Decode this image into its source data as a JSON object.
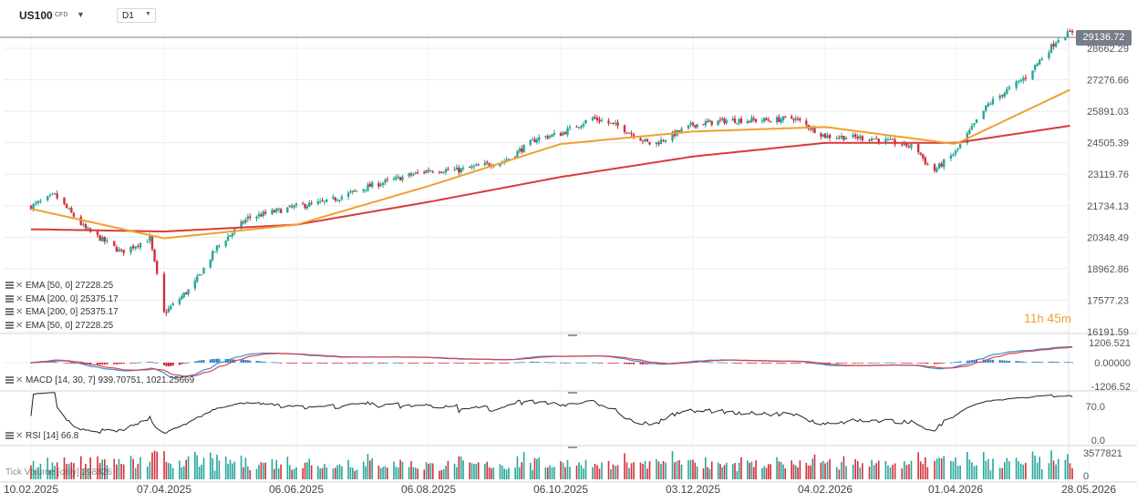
{
  "toolbar": {
    "symbol": "US100",
    "instrument_type": "CFD",
    "timeframe": "D1"
  },
  "price_panel": {
    "last_price_tag": "29136.72",
    "axis_ticks": [
      "28662.29",
      "27276.66",
      "25891.03",
      "24505.39",
      "23119.76",
      "21734.13",
      "20348.49",
      "18962.86",
      "17577.23",
      "16191.59"
    ],
    "countdown": {
      "hours": "11",
      "h_unit": "h",
      "minutes": "45",
      "m_unit": "m"
    },
    "legend": [
      {
        "label": "EMA [50, 0] 27228.25"
      },
      {
        "label": "EMA [200, 0] 25375.17"
      },
      {
        "label": "EMA [200, 0] 25375.17"
      },
      {
        "label": "EMA [50, 0] 27228.25"
      }
    ]
  },
  "macd_panel": {
    "label": "MACD [14, 30, 7] 939.70751, 1021.25669",
    "axis_ticks": [
      "1206.521",
      "0.00000",
      "-1206.52"
    ]
  },
  "rsi_panel": {
    "label": "RSI [14] 66.8",
    "axis_ticks": [
      "70.0",
      "0.0"
    ]
  },
  "volume_panel": {
    "label": "Tick Volume [only] 298826",
    "axis_ticks": [
      "3577821",
      "0"
    ]
  },
  "x_axis": [
    "10.02.2025",
    "07.04.2025",
    "06.06.2025",
    "06.08.2025",
    "06.10.2025",
    "03.12.2025",
    "04.02.2026",
    "01.04.2026",
    "28.05.2026"
  ],
  "colors": {
    "up": "#26a69a",
    "down": "#d32f3a",
    "ema50": "#f0a030",
    "ema200": "#d93a3a",
    "macd_line": "#3a8fd6",
    "macd_signal": "#d9434b",
    "hist_pos": "#2a7fc4",
    "hist_neg": "#c81e2a",
    "rsi": "#222222",
    "price_tag": "#757d88"
  },
  "chart_data": {
    "type": "candlestick",
    "x_start": "10.02.2025",
    "x_end": "28.05.2026",
    "ylim": [
      16191.59,
      29136.72
    ],
    "series": [
      {
        "name": "EMA [50, 0]",
        "last": 27228.25
      },
      {
        "name": "EMA [200, 0]",
        "last": 25375.17
      }
    ],
    "close_path": [
      [
        "10.02.2025",
        21700
      ],
      [
        "20.02.2025",
        22200
      ],
      [
        "05.03.2025",
        20700
      ],
      [
        "20.03.2025",
        19700
      ],
      [
        "01.04.2025",
        20300
      ],
      [
        "07.04.2025",
        17000
      ],
      [
        "20.04.2025",
        18200
      ],
      [
        "01.05.2025",
        19900
      ],
      [
        "15.05.2025",
        21200
      ],
      [
        "06.06.2025",
        21700
      ],
      [
        "20.06.2025",
        21900
      ],
      [
        "10.07.2025",
        22600
      ],
      [
        "06.08.2025",
        23300
      ],
      [
        "20.08.2025",
        23300
      ],
      [
        "10.09.2025",
        23700
      ],
      [
        "25.09.2025",
        24700
      ],
      [
        "06.10.2025",
        24900
      ],
      [
        "20.10.2025",
        25600
      ],
      [
        "01.11.2025",
        25200
      ],
      [
        "15.11.2025",
        24400
      ],
      [
        "03.12.2025",
        25300
      ],
      [
        "20.12.2025",
        25500
      ],
      [
        "10.01.2026",
        25500
      ],
      [
        "20.01.2026",
        25600
      ],
      [
        "04.02.2026",
        24800
      ],
      [
        "25.02.2026",
        24700
      ],
      [
        "15.03.2026",
        24300
      ],
      [
        "22.03.2026",
        23200
      ],
      [
        "01.04.2026",
        24100
      ],
      [
        "15.04.2026",
        26200
      ],
      [
        "01.05.2026",
        27400
      ],
      [
        "15.05.2026",
        29100
      ],
      [
        "21.05.2026",
        29400
      ],
      [
        "28.05.2026",
        29136.72
      ]
    ],
    "ema50_path": [
      [
        "10.02.2025",
        21600
      ],
      [
        "07.04.2025",
        20300
      ],
      [
        "06.06.2025",
        20900
      ],
      [
        "06.08.2025",
        22600
      ],
      [
        "06.10.2025",
        24450
      ],
      [
        "03.12.2025",
        25000
      ],
      [
        "04.02.2026",
        25200
      ],
      [
        "01.04.2026",
        24450
      ],
      [
        "28.05.2026",
        27228.25
      ]
    ],
    "ema200_path": [
      [
        "10.02.2025",
        20700
      ],
      [
        "07.04.2025",
        20600
      ],
      [
        "06.06.2025",
        20900
      ],
      [
        "06.08.2025",
        21900
      ],
      [
        "06.10.2025",
        23000
      ],
      [
        "03.12.2025",
        23900
      ],
      [
        "04.02.2026",
        24500
      ],
      [
        "01.04.2026",
        24500
      ],
      [
        "28.05.2026",
        25375.17
      ]
    ],
    "macd_range": [
      -1206.52,
      1206.521
    ],
    "macd_last": 939.70751,
    "signal_last": 1021.25669,
    "rsi_last": 66.8,
    "rsi_range": [
      0.0,
      70.0
    ],
    "volume_max": 3577821,
    "volume_last": 298826
  }
}
